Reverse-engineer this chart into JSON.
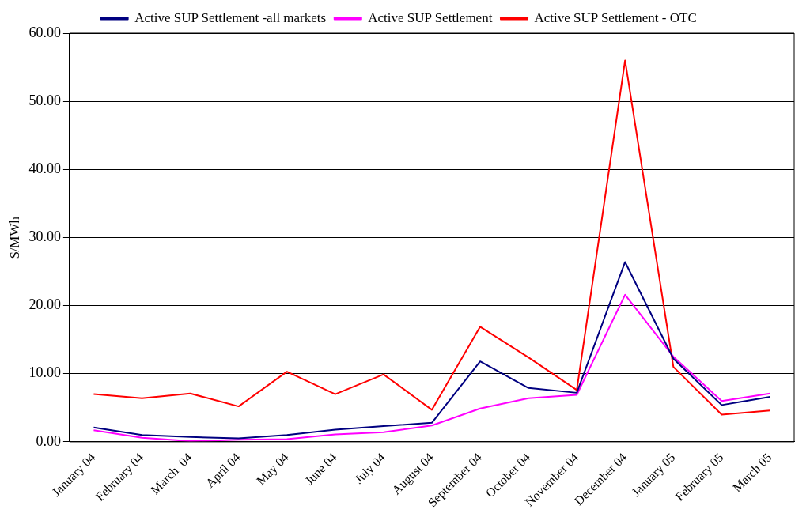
{
  "chart_data": {
    "type": "line",
    "ylabel": "$/MWh",
    "categories": [
      "January 04",
      "February 04",
      "March  04",
      "April 04",
      "May 04",
      "June 04",
      "July 04",
      "August 04",
      "September 04",
      "October 04",
      "November 04",
      "December 04",
      "January 05",
      "February 05",
      "March 05"
    ],
    "series": [
      {
        "name": "Active SUP Settlement -all markets",
        "color": "#000080",
        "values": [
          2.1,
          1.0,
          0.7,
          0.5,
          1.0,
          1.8,
          2.3,
          2.8,
          11.8,
          7.9,
          7.2,
          26.4,
          12.2,
          5.4,
          6.6
        ]
      },
      {
        "name": "Active SUP Settlement",
        "color": "#ff00ff",
        "values": [
          1.7,
          0.6,
          0.1,
          0.3,
          0.4,
          1.1,
          1.4,
          2.4,
          4.9,
          6.4,
          6.9,
          21.6,
          12.5,
          6.0,
          7.1
        ]
      },
      {
        "name": "Active SUP Settlement - OTC",
        "color": "#ff0000",
        "values": [
          7.0,
          6.4,
          7.1,
          5.2,
          10.3,
          7.0,
          9.9,
          4.7,
          16.9,
          12.4,
          7.6,
          56,
          11.0,
          4.0,
          4.6
        ]
      }
    ],
    "ylim": [
      0,
      60
    ],
    "yticks": [
      {
        "value": 0,
        "label": "0.00"
      },
      {
        "value": 10,
        "label": "10.00"
      },
      {
        "value": 20,
        "label": "20.00"
      },
      {
        "value": 30,
        "label": "30.00"
      },
      {
        "value": 40,
        "label": "40.00"
      },
      {
        "value": 50,
        "label": "50.00"
      },
      {
        "value": 60,
        "label": "60.00"
      }
    ],
    "grid": "y",
    "legend": "top",
    "marker": "none",
    "line_style": "solid"
  }
}
